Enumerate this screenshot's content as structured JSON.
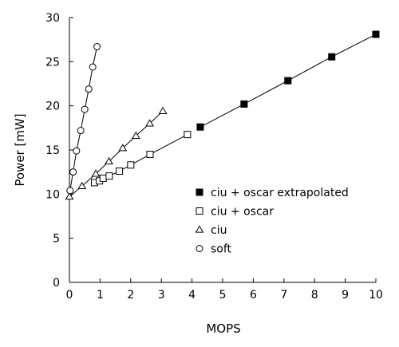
{
  "chart_data": {
    "type": "line",
    "title": "",
    "xlabel": "MOPS",
    "ylabel": "Power [mW]",
    "xlim": [
      0,
      10
    ],
    "ylim": [
      0,
      30
    ],
    "xticks": [
      0,
      1,
      2,
      3,
      4,
      5,
      6,
      7,
      8,
      9,
      10
    ],
    "yticks": [
      0,
      5,
      10,
      15,
      20,
      25,
      30
    ],
    "grid": false,
    "legend_position": "center-right",
    "series": [
      {
        "name": "ciu + oscar extrapolated",
        "marker": "filled-square",
        "x": [
          4.27,
          5.7,
          7.13,
          8.56,
          10.0
        ],
        "y": [
          17.6,
          20.2,
          22.85,
          25.55,
          28.1
        ]
      },
      {
        "name": "ciu + oscar",
        "marker": "open-square",
        "x": [
          0.82,
          0.98,
          1.1,
          1.3,
          1.63,
          2.0,
          2.63,
          3.85
        ],
        "y": [
          11.3,
          11.5,
          11.8,
          12.05,
          12.6,
          13.3,
          14.5,
          16.75
        ]
      },
      {
        "name": "ciu",
        "marker": "open-triangle",
        "x": [
          0.0,
          0.41,
          0.86,
          1.29,
          1.74,
          2.17,
          2.62,
          3.05
        ],
        "y": [
          9.7,
          10.9,
          12.3,
          13.7,
          15.2,
          16.6,
          18.0,
          19.4
        ]
      },
      {
        "name": "soft",
        "marker": "open-circle",
        "x": [
          0.02,
          0.12,
          0.23,
          0.37,
          0.5,
          0.63,
          0.76,
          0.9
        ],
        "y": [
          10.4,
          12.5,
          14.9,
          17.2,
          19.6,
          21.9,
          24.4,
          26.7
        ]
      }
    ]
  }
}
